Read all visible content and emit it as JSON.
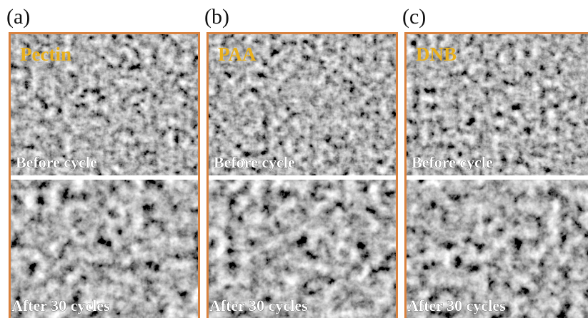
{
  "panels": [
    {
      "label": "(a)",
      "material": "Pectin",
      "top_caption": "Before cycle",
      "bottom_caption": "After 30 cycles"
    },
    {
      "label": "(b)",
      "material": "PAA",
      "top_caption": "Before cycle",
      "bottom_caption": "After 30 cycles"
    },
    {
      "label": "(c)",
      "material": "DNB",
      "top_caption": "Before cycle",
      "bottom_caption": "After 30 cycles"
    }
  ]
}
